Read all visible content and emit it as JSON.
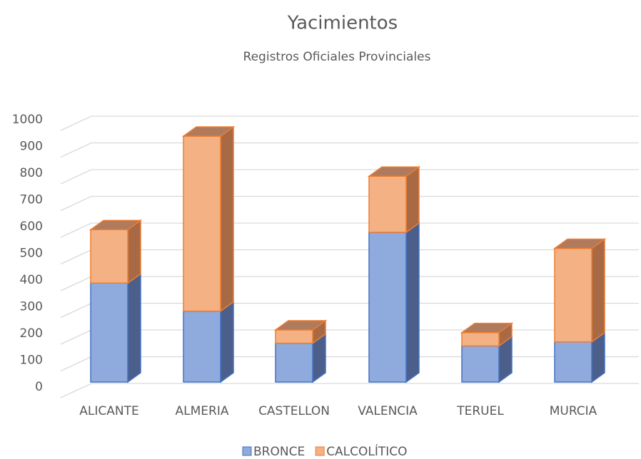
{
  "chart_data": {
    "type": "bar3d_stacked",
    "title": "Yacimientos",
    "subtitle": "Registros Oficiales Provinciales",
    "categories": [
      "ALICANTE",
      "ALMERIA",
      "CASTELLON",
      "VALENCIA",
      "TERUEL",
      "MURCIA"
    ],
    "series": [
      {
        "name": "BRONCE",
        "color": "#8faadc",
        "edge": "#4472c4",
        "values": [
          370,
          265,
          145,
          560,
          135,
          150
        ]
      },
      {
        "name": "CALCOLÍTICO",
        "color": "#f4b183",
        "edge": "#ed7d31",
        "values": [
          200,
          655,
          50,
          210,
          50,
          350
        ]
      }
    ],
    "ylim": [
      0,
      1000
    ],
    "yticks": [
      0,
      100,
      200,
      300,
      400,
      500,
      600,
      700,
      800,
      900,
      1000
    ],
    "grid": true,
    "legend": "bottom"
  }
}
